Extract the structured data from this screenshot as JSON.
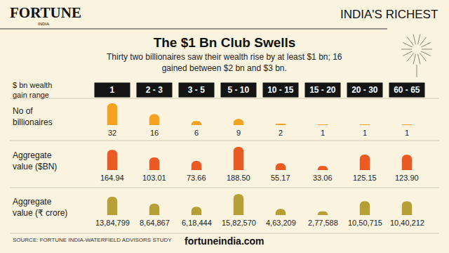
{
  "header": {
    "brand": "FORTUNE",
    "brand_sub": "INDIA",
    "section": "INDIA'S RICHEST"
  },
  "chart_data": [
    {
      "type": "bar",
      "title": "The $1 Bn Club Swells",
      "subtitle": "Thirty two billionaires saw their wealth rise by at least $1 bn; 16 gained between $2 bn and $3 bn.",
      "xlabel": [
        "$ bn wealth",
        "gain range"
      ],
      "ylabel": [
        "No of",
        "billionaires"
      ],
      "categories": [
        "1",
        "2 - 3",
        "3 - 5",
        "5 - 10",
        "10 - 15",
        "15 - 20",
        "20 - 30",
        "60 - 65"
      ],
      "values": [
        32,
        16,
        6,
        9,
        2,
        1,
        1,
        1
      ],
      "color": "#f4a21f",
      "ylim": [
        0,
        34
      ],
      "data_labels": true
    },
    {
      "type": "bar",
      "ylabel": [
        "Aggregate",
        "value ($BN)"
      ],
      "categories": [
        "1",
        "2 - 3",
        "3 - 5",
        "5 - 10",
        "10 - 15",
        "15 - 20",
        "20 - 30",
        "60 - 65"
      ],
      "values": [
        164.94,
        103.01,
        73.66,
        188.5,
        55.17,
        33.06,
        125.15,
        123.9
      ],
      "value_labels": [
        "164.94",
        "103.01",
        "73.66",
        "188.50",
        "55.17",
        "33.06",
        "125.15",
        "123.90"
      ],
      "color": "#ec5a24",
      "ylim": [
        0,
        200
      ],
      "data_labels": true
    },
    {
      "type": "bar",
      "ylabel": [
        "Aggregate",
        "value (₹ crore)"
      ],
      "categories": [
        "1",
        "2 - 3",
        "3 - 5",
        "5 - 10",
        "10 - 15",
        "15 - 20",
        "20 - 30",
        "60 - 65"
      ],
      "values": [
        1384799,
        864867,
        618444,
        1582570,
        463209,
        277588,
        1050715,
        1040212
      ],
      "value_labels": [
        "13,84,799",
        "8,64,867",
        "6,18,444",
        "15,82,570",
        "4,63,209",
        "2,77,588",
        "10,50,715",
        "10,40,212"
      ],
      "color": "#b59f36",
      "ylim": [
        0,
        1700000
      ],
      "data_labels": true
    }
  ],
  "footer": {
    "source": "SOURCE: FORTUNE INDIA-WATERFIELD ADVISORS STUDY",
    "website": "fortuneindia.com"
  }
}
